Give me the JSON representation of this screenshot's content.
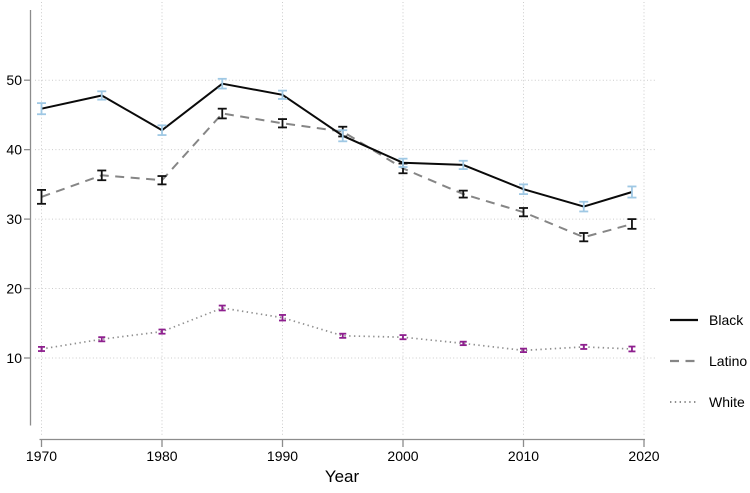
{
  "chart_data": {
    "type": "line",
    "title": "",
    "xlabel": "Year",
    "ylabel": "",
    "x": [
      1970,
      1975,
      1980,
      1985,
      1990,
      1995,
      2000,
      2005,
      2010,
      2015,
      2019
    ],
    "xticks": [
      1970,
      1980,
      1990,
      2000,
      2010,
      2020
    ],
    "yticks": [
      10,
      20,
      30,
      40,
      50
    ],
    "xlim": [
      1970,
      2020
    ],
    "ylim": [
      0.5,
      60
    ],
    "grid": "dotted-both",
    "legend_position": "right-outside",
    "series": [
      {
        "name": "Black",
        "line_style": "solid",
        "line_color": "#0a0a0a",
        "ci_color": "#9fc8e4",
        "values": [
          45.9,
          47.8,
          42.8,
          49.5,
          47.9,
          42.0,
          38.1,
          37.8,
          34.3,
          31.8,
          33.9
        ],
        "ci": [
          0.8,
          0.6,
          0.7,
          0.7,
          0.6,
          0.8,
          0.6,
          0.6,
          0.7,
          0.7,
          0.8
        ]
      },
      {
        "name": "Latino",
        "line_style": "dashed",
        "line_color": "#868686",
        "ci_color": "#111111",
        "values": [
          33.2,
          36.3,
          35.6,
          45.2,
          43.8,
          42.6,
          37.3,
          33.6,
          31.0,
          27.4,
          29.3
        ],
        "ci": [
          1.0,
          0.7,
          0.6,
          0.7,
          0.6,
          0.7,
          0.7,
          0.5,
          0.6,
          0.6,
          0.7
        ]
      },
      {
        "name": "White",
        "line_style": "dotted",
        "line_color": "#8f8f8f",
        "ci_color": "#8e1f8e",
        "values": [
          11.3,
          12.7,
          13.8,
          17.2,
          15.8,
          13.2,
          13.0,
          12.1,
          11.1,
          11.6,
          11.3
        ],
        "ci": [
          0.3,
          0.3,
          0.3,
          0.35,
          0.4,
          0.3,
          0.3,
          0.25,
          0.25,
          0.3,
          0.35
        ]
      }
    ]
  },
  "colors": {
    "grid": "#cccccc",
    "axis": "#8c8c8c",
    "tick_label": "#000000",
    "background": "#ffffff"
  }
}
